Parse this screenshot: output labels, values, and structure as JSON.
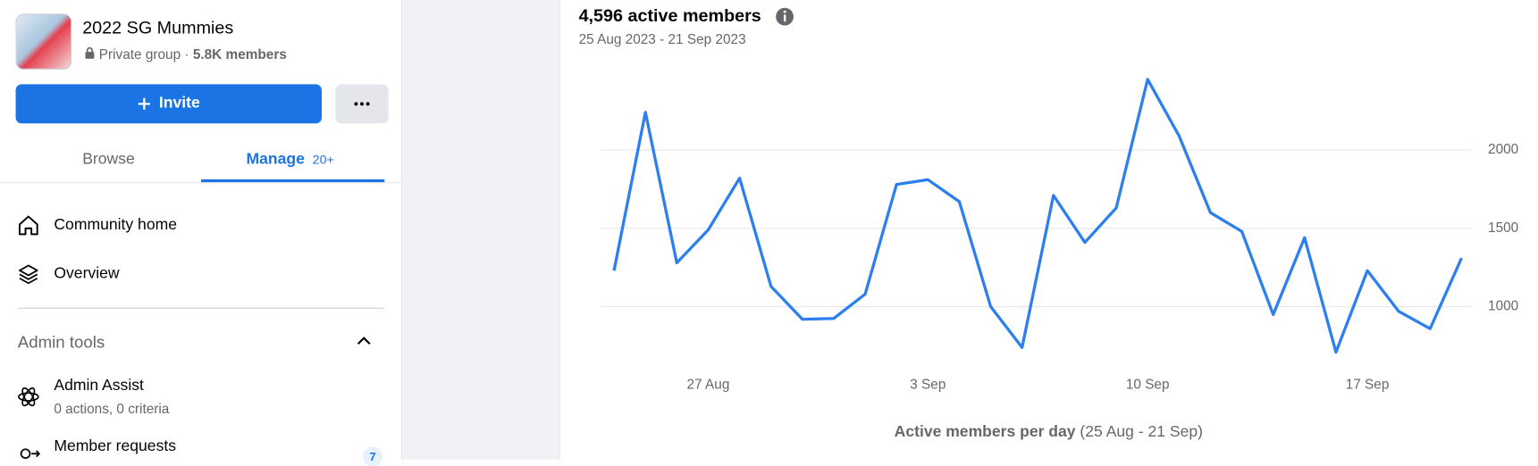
{
  "sidebar": {
    "group_name": "2022 SG Mummies",
    "privacy": "Private group",
    "separator": "·",
    "members": "5.8K members",
    "invite_button": "Invite",
    "tabs": [
      {
        "label": "Browse"
      },
      {
        "label": "Manage",
        "badge": "20+"
      }
    ],
    "menu": [
      "Community home",
      "Overview"
    ],
    "section_title": "Admin tools",
    "tools": [
      {
        "label": "Admin Assist",
        "detail": "0 actions, 0 criteria"
      },
      {
        "label": "Member requests",
        "badge": "7"
      }
    ]
  },
  "chart_data": {
    "type": "line",
    "title": "4,596 active members",
    "subtitle": "25 Aug 2023 - 21 Sep 2023",
    "x_label": "Active members per day",
    "x_label_note": "(25 Aug - 21 Sep)",
    "categories": [
      null,
      null,
      null,
      "27 Aug",
      null,
      null,
      null,
      null,
      null,
      null,
      "3 Sep",
      null,
      null,
      null,
      null,
      null,
      null,
      "10 Sep",
      null,
      null,
      null,
      null,
      null,
      null,
      "17 Sep",
      null,
      null,
      null
    ],
    "series": [
      {
        "color": "#2d7ff0",
        "values": [
          1230,
          2240,
          1280,
          1490,
          1820,
          1130,
          920,
          925,
          1080,
          1780,
          1810,
          1670,
          1000,
          740,
          1710,
          1410,
          1630,
          2450,
          2090,
          1600,
          1480,
          950,
          1440,
          710,
          1230,
          970,
          860,
          1310
        ]
      }
    ],
    "ylim": [
      650,
      2550
    ],
    "yticks": [
      1000,
      1500,
      2000
    ],
    "grid": true
  }
}
